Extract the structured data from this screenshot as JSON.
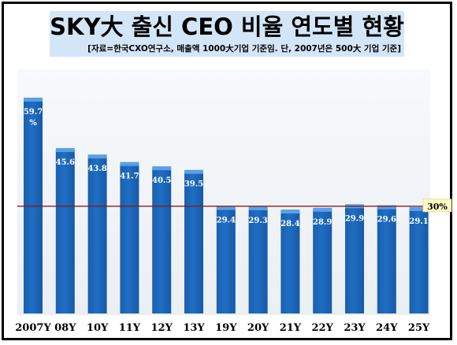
{
  "title": "SKY大 출신 CEO 비율 연도별 현황",
  "subtitle": "[자료=한국CXO연구소, 매출액 1000大기업  기준임. 단, 2007년은 500大 기업 기준]",
  "reference_label": "30%",
  "colors": {
    "bar": "#1f6ec4",
    "bar_top": "#5aa0e6",
    "reference_line": "#8b1a1a",
    "value_text": "#ffffff"
  },
  "chart_data": {
    "type": "bar",
    "categories": [
      "2007Y",
      "08Y",
      "10Y",
      "11Y",
      "12Y",
      "13Y",
      "19Y",
      "20Y",
      "21Y",
      "22Y",
      "23Y",
      "24Y",
      "25Y"
    ],
    "values": [
      59.7,
      45.6,
      43.8,
      41.7,
      40.5,
      39.5,
      29.4,
      29.3,
      28.4,
      28.9,
      29.9,
      29.6,
      29.1
    ],
    "value_labels": [
      "59.7\n%",
      "45.6",
      "43.8",
      "41.7",
      "40.5",
      "39.5",
      "29.4",
      "29.3",
      "28.4",
      "28.9",
      "29.9",
      "29.6",
      "29.1"
    ],
    "reference_line": 30,
    "ylim": [
      0,
      66
    ],
    "title": "SKY大 출신 CEO 비율 연도별 현황",
    "xlabel": "",
    "ylabel": "",
    "grid": false,
    "legend": "none"
  }
}
